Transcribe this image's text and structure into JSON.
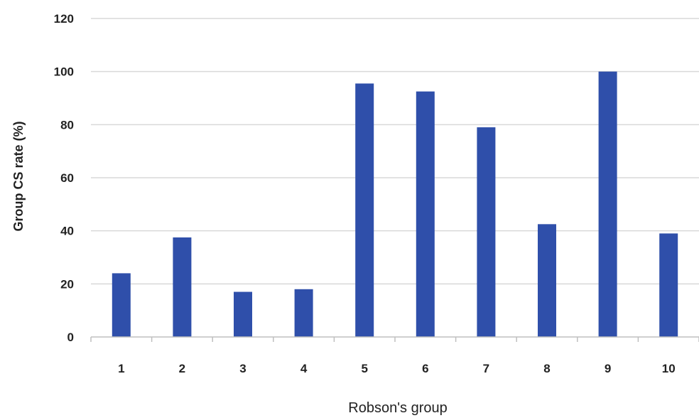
{
  "chart_data": {
    "type": "bar",
    "title": "",
    "xlabel": "Robson's group",
    "ylabel": "Group CS rate (%)",
    "categories": [
      "1",
      "2",
      "3",
      "4",
      "5",
      "6",
      "7",
      "8",
      "9",
      "10"
    ],
    "values": [
      24,
      37.5,
      17,
      18,
      95.5,
      92.5,
      79,
      42.5,
      100,
      39
    ],
    "ylim": [
      0,
      120
    ],
    "yticks": [
      "0",
      "20",
      "40",
      "60",
      "80",
      "100",
      "120"
    ],
    "grid": true,
    "legend": "none",
    "bar_color": "#2f4faa"
  }
}
